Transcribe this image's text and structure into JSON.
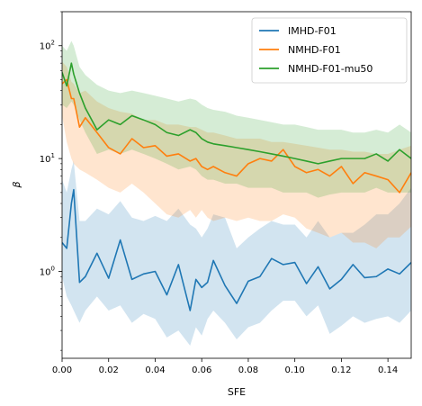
{
  "chart_data": {
    "type": "line",
    "xlabel": "SFE",
    "ylabel": "β",
    "xlim": [
      0.0,
      0.15
    ],
    "ylim": [
      0.17,
      200
    ],
    "yscale": "log",
    "grid": false,
    "legend_position": "top-right",
    "x_ticks": [
      "0.00",
      "0.02",
      "0.04",
      "0.06",
      "0.08",
      "0.10",
      "0.12",
      "0.14"
    ],
    "y_tick_labels": [
      {
        "value": 1,
        "base": "10",
        "exp": "0"
      },
      {
        "value": 10,
        "base": "10",
        "exp": "1"
      },
      {
        "value": 100,
        "base": "10",
        "exp": "2"
      }
    ],
    "x": [
      0.0,
      0.002,
      0.004,
      0.005,
      0.0075,
      0.01,
      0.015,
      0.02,
      0.025,
      0.03,
      0.035,
      0.04,
      0.045,
      0.05,
      0.055,
      0.0575,
      0.06,
      0.0625,
      0.065,
      0.07,
      0.075,
      0.08,
      0.085,
      0.09,
      0.095,
      0.1,
      0.105,
      0.11,
      0.115,
      0.12,
      0.125,
      0.13,
      0.135,
      0.14,
      0.145,
      0.15
    ],
    "series": [
      {
        "name": "IMHD-F01",
        "color": "#1f77b4",
        "values": [
          1.8,
          1.6,
          4.0,
          5.3,
          0.8,
          0.9,
          1.45,
          0.87,
          1.9,
          0.85,
          0.95,
          1.0,
          0.62,
          1.15,
          0.45,
          0.85,
          0.72,
          0.8,
          1.25,
          0.75,
          0.52,
          0.82,
          0.9,
          1.3,
          1.15,
          1.2,
          0.78,
          1.1,
          0.7,
          0.85,
          1.15,
          0.88,
          0.9,
          1.05,
          0.95,
          1.2
        ],
        "lower": [
          0.9,
          0.6,
          0.5,
          0.45,
          0.35,
          0.45,
          0.6,
          0.45,
          0.5,
          0.35,
          0.42,
          0.38,
          0.26,
          0.3,
          0.22,
          0.32,
          0.27,
          0.38,
          0.45,
          0.35,
          0.25,
          0.32,
          0.35,
          0.45,
          0.55,
          0.55,
          0.4,
          0.5,
          0.28,
          0.33,
          0.4,
          0.35,
          0.38,
          0.4,
          0.35,
          0.45
        ],
        "upper": [
          6.5,
          5.0,
          8.0,
          9.5,
          2.8,
          2.8,
          3.6,
          3.2,
          4.2,
          3.0,
          2.8,
          3.1,
          2.8,
          3.6,
          2.6,
          2.4,
          2.0,
          2.4,
          3.2,
          3.0,
          1.6,
          2.0,
          2.4,
          2.8,
          2.6,
          2.6,
          2.0,
          2.8,
          2.0,
          2.2,
          2.2,
          2.6,
          3.2,
          3.2,
          4.0,
          5.5
        ]
      },
      {
        "name": "NMHD-F01",
        "color": "#ff7f0e",
        "values": [
          46.0,
          50.0,
          34.0,
          34.0,
          19.0,
          23.0,
          17.0,
          12.5,
          11.0,
          15.0,
          12.5,
          13.0,
          10.5,
          11.0,
          9.5,
          10.0,
          8.5,
          8.0,
          8.5,
          7.5,
          7.0,
          9.0,
          10.0,
          9.5,
          12.0,
          8.5,
          7.5,
          8.0,
          7.0,
          8.5,
          6.0,
          7.5,
          7.0,
          6.5,
          5.0,
          7.5
        ],
        "lower": [
          24.0,
          14.0,
          10.0,
          9.0,
          8.0,
          7.5,
          6.5,
          5.5,
          5.0,
          6.0,
          5.0,
          4.0,
          3.2,
          3.0,
          3.5,
          3.0,
          3.5,
          3.0,
          2.8,
          3.0,
          2.8,
          3.0,
          2.8,
          2.8,
          3.2,
          3.0,
          2.4,
          2.2,
          2.0,
          2.2,
          1.8,
          1.8,
          1.6,
          2.0,
          2.0,
          2.5
        ],
        "upper": [
          72.0,
          65.0,
          48.0,
          46.0,
          38.0,
          40.0,
          32.0,
          28.0,
          26.0,
          25.0,
          22.0,
          22.0,
          20.0,
          20.0,
          19.0,
          19.0,
          18.0,
          17.0,
          17.0,
          16.0,
          15.0,
          15.0,
          15.0,
          14.0,
          14.0,
          13.5,
          13.0,
          12.5,
          12.0,
          12.0,
          11.5,
          11.5,
          11.0,
          11.0,
          12.0,
          13.0
        ]
      },
      {
        "name": "NMHD-F01-mu50",
        "color": "#2ca02c",
        "values": [
          58.0,
          44.0,
          70.0,
          56.0,
          38.0,
          28.0,
          18.0,
          22.0,
          20.0,
          24.0,
          22.0,
          20.0,
          17.0,
          16.0,
          18.0,
          17.0,
          15.0,
          14.0,
          13.5,
          13.0,
          12.5,
          12.0,
          11.5,
          11.0,
          10.5,
          10.0,
          9.5,
          9.0,
          9.5,
          10.0,
          10.0,
          10.0,
          11.0,
          9.5,
          12.0,
          10.0
        ],
        "lower": [
          30.0,
          28.0,
          32.0,
          30.0,
          22.0,
          17.0,
          11.0,
          12.0,
          11.0,
          12.0,
          11.0,
          10.0,
          9.0,
          8.0,
          8.5,
          8.0,
          7.0,
          6.5,
          6.5,
          6.0,
          6.0,
          5.5,
          5.5,
          5.5,
          5.0,
          5.0,
          5.0,
          4.5,
          4.8,
          5.0,
          5.0,
          5.0,
          5.5,
          5.0,
          5.0,
          5.0
        ],
        "upper": [
          100.0,
          90.0,
          110.0,
          100.0,
          65.0,
          55.0,
          45.0,
          40.0,
          38.0,
          40.0,
          38.0,
          36.0,
          34.0,
          32.0,
          34.0,
          33.0,
          30.0,
          28.0,
          27.0,
          26.0,
          24.0,
          23.0,
          22.0,
          21.0,
          20.0,
          20.0,
          19.0,
          18.0,
          18.0,
          18.0,
          17.0,
          17.0,
          18.0,
          17.0,
          20.0,
          17.0
        ]
      }
    ]
  }
}
